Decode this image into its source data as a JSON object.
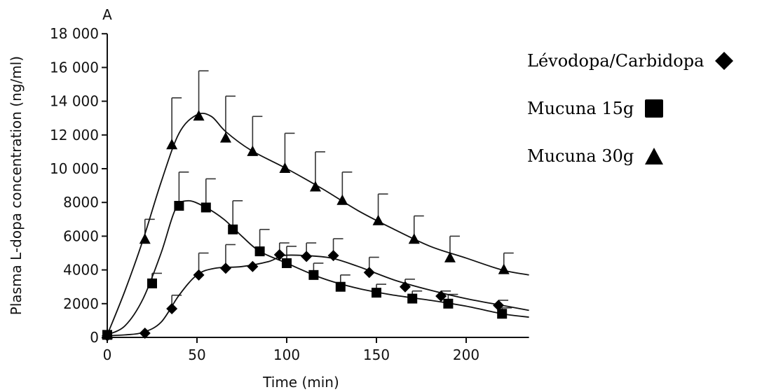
{
  "chart_data": {
    "type": "line",
    "panel_label": "A",
    "xlabel": "Time (min)",
    "ylabel": "Plasma L-dopa concentration (ng/ml)",
    "xlim": [
      0,
      235
    ],
    "ylim": [
      0,
      18000
    ],
    "x_ticks": [
      0,
      50,
      100,
      150,
      200
    ],
    "x_tick_labels": [
      "0",
      "50",
      "100",
      "150",
      "200"
    ],
    "y_ticks": [
      0,
      2000,
      4000,
      6000,
      8000,
      10000,
      12000,
      14000,
      16000,
      18000
    ],
    "y_tick_labels": [
      "0",
      "2000",
      "4000",
      "6000",
      "8000",
      "10 000",
      "12 000",
      "14 000",
      "16 000",
      "18 000"
    ],
    "grid": false,
    "legend_position": "right",
    "series": [
      {
        "name": "Lévodopa/Carbidopa",
        "marker": "diamond",
        "x": [
          0,
          21,
          36,
          51,
          66,
          81,
          96,
          111,
          126,
          146,
          166,
          186,
          218
        ],
        "y": [
          100,
          250,
          1700,
          3700,
          4100,
          4200,
          4900,
          4800,
          4850,
          3850,
          3000,
          2450,
          1900
        ],
        "error": [
          0,
          0,
          800,
          1300,
          1400,
          0,
          700,
          800,
          1000,
          900,
          450,
          300,
          300
        ],
        "curve": [
          [
            0,
            100
          ],
          [
            10,
            150
          ],
          [
            20,
            300
          ],
          [
            30,
            900
          ],
          [
            40,
            2500
          ],
          [
            50,
            3700
          ],
          [
            60,
            4100
          ],
          [
            75,
            4200
          ],
          [
            90,
            4500
          ],
          [
            98,
            4850
          ],
          [
            110,
            4850
          ],
          [
            125,
            4700
          ],
          [
            140,
            4200
          ],
          [
            160,
            3400
          ],
          [
            180,
            2800
          ],
          [
            200,
            2300
          ],
          [
            220,
            1900
          ],
          [
            235,
            1600
          ]
        ]
      },
      {
        "name": "Mucuna 15g",
        "marker": "square",
        "x": [
          0,
          25,
          40,
          55,
          70,
          85,
          100,
          115,
          130,
          150,
          170,
          190,
          220
        ],
        "y": [
          150,
          3200,
          7800,
          7700,
          6400,
          5100,
          4400,
          3700,
          3000,
          2650,
          2300,
          2000,
          1400
        ],
        "error": [
          0,
          600,
          2000,
          1700,
          1700,
          1300,
          1000,
          700,
          700,
          500,
          450,
          550,
          350
        ],
        "curve": [
          [
            0,
            150
          ],
          [
            10,
            700
          ],
          [
            20,
            2300
          ],
          [
            30,
            5000
          ],
          [
            38,
            7600
          ],
          [
            45,
            8100
          ],
          [
            55,
            7700
          ],
          [
            65,
            7000
          ],
          [
            75,
            6000
          ],
          [
            85,
            5100
          ],
          [
            100,
            4400
          ],
          [
            120,
            3500
          ],
          [
            140,
            2900
          ],
          [
            160,
            2500
          ],
          [
            180,
            2200
          ],
          [
            200,
            1850
          ],
          [
            220,
            1400
          ],
          [
            235,
            1200
          ]
        ]
      },
      {
        "name": "Mucuna 30g",
        "marker": "triangle",
        "x": [
          0,
          21,
          36,
          51,
          66,
          81,
          99,
          116,
          131,
          151,
          171,
          191,
          221
        ],
        "y": [
          150,
          5800,
          11400,
          13100,
          11800,
          11000,
          10000,
          8900,
          8100,
          6900,
          5800,
          4700,
          4000
        ],
        "error": [
          0,
          1200,
          2800,
          2700,
          2500,
          2100,
          2100,
          2100,
          1700,
          1600,
          1400,
          1300,
          1000
        ],
        "curve": [
          [
            0,
            150
          ],
          [
            10,
            2800
          ],
          [
            20,
            5800
          ],
          [
            30,
            9200
          ],
          [
            40,
            12100
          ],
          [
            50,
            13200
          ],
          [
            58,
            13100
          ],
          [
            66,
            12200
          ],
          [
            80,
            11100
          ],
          [
            100,
            10000
          ],
          [
            120,
            8800
          ],
          [
            140,
            7500
          ],
          [
            160,
            6400
          ],
          [
            180,
            5400
          ],
          [
            200,
            4700
          ],
          [
            220,
            4000
          ],
          [
            235,
            3700
          ]
        ]
      }
    ]
  }
}
